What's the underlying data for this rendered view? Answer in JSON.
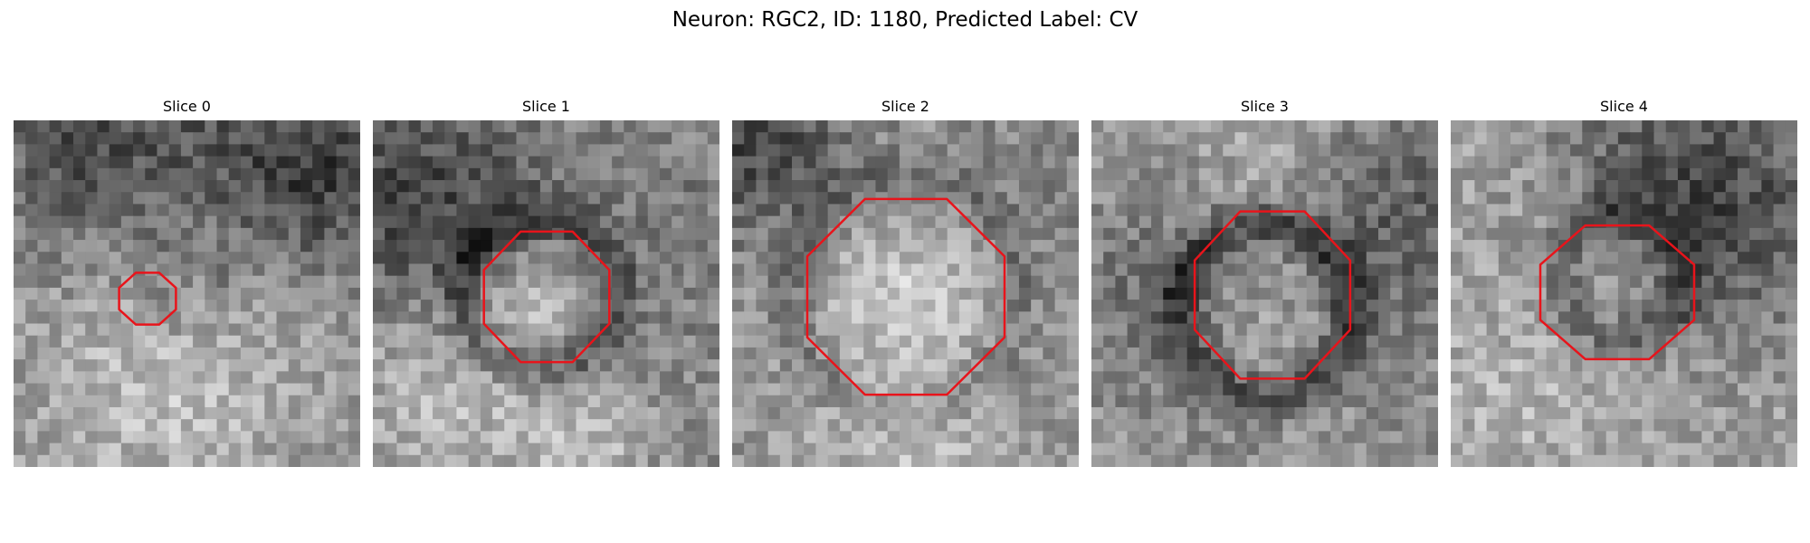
{
  "figure": {
    "title": "Neuron: RGC2, ID: 1180, Predicted Label: CV"
  },
  "colors": {
    "contour": "#e8141b",
    "background": "#ffffff"
  },
  "panels": [
    {
      "title": "Slice 0"
    },
    {
      "title": "Slice 1"
    },
    {
      "title": "Slice 2"
    },
    {
      "title": "Slice 3"
    },
    {
      "title": "Slice 4"
    }
  ]
}
